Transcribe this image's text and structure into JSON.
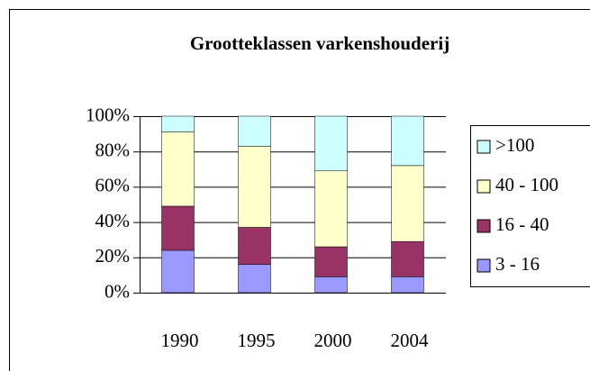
{
  "chart_data": {
    "type": "stacked_bar_percent",
    "title": "Grootteklassen varkenshouderij",
    "categories": [
      "1990",
      "1995",
      "2000",
      "2004"
    ],
    "series": [
      {
        "name": "3 - 16",
        "color": "#9999ff",
        "values": [
          24,
          16,
          9,
          9
        ]
      },
      {
        "name": "16 - 40",
        "color": "#993366",
        "values": [
          25,
          21,
          17,
          20
        ]
      },
      {
        "name": "40 - 100",
        "color": "#ffffcc",
        "values": [
          42,
          46,
          43,
          43
        ]
      },
      {
        "name": ">100",
        "color": "#ccffff",
        "values": [
          9,
          17,
          31,
          28
        ]
      }
    ],
    "ylim": [
      0,
      100
    ],
    "yticks": [
      {
        "value": 0,
        "label": "0%"
      },
      {
        "value": 20,
        "label": "20%"
      },
      {
        "value": 40,
        "label": "40%"
      },
      {
        "value": 60,
        "label": "60%"
      },
      {
        "value": 80,
        "label": "80%"
      },
      {
        "value": 100,
        "label": "100%"
      }
    ],
    "grid": true,
    "legend": "right"
  }
}
